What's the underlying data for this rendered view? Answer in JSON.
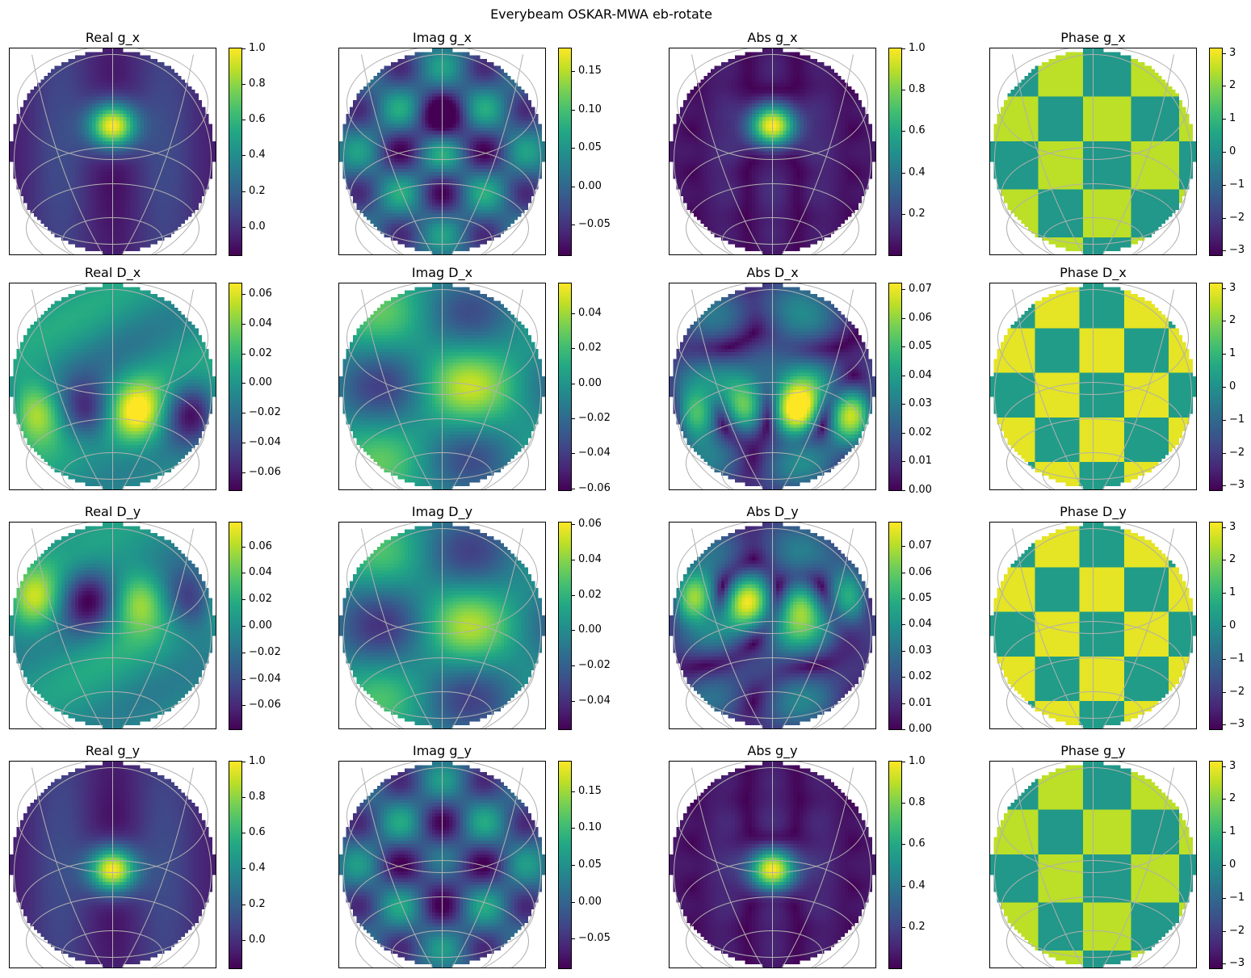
{
  "figure_title": "Everybeam OSKAR-MWA eb-rotate",
  "colormap": "viridis",
  "grid_color": "#b0b0b0",
  "chart_data": [
    {
      "type": "heatmap",
      "title": "Real g_x",
      "component": "g_x",
      "quantity": "real",
      "clim": [
        -0.16,
        1.0
      ],
      "ticks": [
        1.0,
        0.8,
        0.6,
        0.4,
        0.2,
        0.0
      ],
      "tick_labels": [
        "1.0",
        "0.8",
        "0.6",
        "0.4",
        "0.2",
        "0.0"
      ]
    },
    {
      "type": "heatmap",
      "title": "Imag g_x",
      "component": "g_x",
      "quantity": "imag",
      "clim": [
        -0.09,
        0.18
      ],
      "ticks": [
        0.15,
        0.1,
        0.05,
        0.0,
        -0.05
      ],
      "tick_labels": [
        "0.15",
        "0.10",
        "0.05",
        "0.00",
        "−0.05"
      ]
    },
    {
      "type": "heatmap",
      "title": "Abs g_x",
      "component": "g_x",
      "quantity": "abs",
      "clim": [
        0.0,
        1.0
      ],
      "ticks": [
        1.0,
        0.8,
        0.6,
        0.4,
        0.2
      ],
      "tick_labels": [
        "1.0",
        "0.8",
        "0.6",
        "0.4",
        "0.2"
      ]
    },
    {
      "type": "heatmap",
      "title": "Phase g_x",
      "component": "g_x",
      "quantity": "phase",
      "clim": [
        -3.14,
        3.14
      ],
      "ticks": [
        3,
        2,
        1,
        0,
        -1,
        -2,
        -3
      ],
      "tick_labels": [
        "3",
        "2",
        "1",
        "0",
        "−1",
        "−2",
        "−3"
      ]
    },
    {
      "type": "heatmap",
      "title": "Real D_x",
      "component": "D_x",
      "quantity": "real",
      "clim": [
        -0.072,
        0.067
      ],
      "ticks": [
        0.06,
        0.04,
        0.02,
        0.0,
        -0.02,
        -0.04,
        -0.06
      ],
      "tick_labels": [
        "0.06",
        "0.04",
        "0.02",
        "0.00",
        "−0.02",
        "−0.04",
        "−0.06"
      ]
    },
    {
      "type": "heatmap",
      "title": "Imag D_x",
      "component": "D_x",
      "quantity": "imag",
      "clim": [
        -0.061,
        0.057
      ],
      "ticks": [
        0.04,
        0.02,
        0.0,
        -0.02,
        -0.04,
        -0.06
      ],
      "tick_labels": [
        "0.04",
        "0.02",
        "0.00",
        "−0.02",
        "−0.04",
        "−0.06"
      ]
    },
    {
      "type": "heatmap",
      "title": "Abs D_x",
      "component": "D_x",
      "quantity": "abs",
      "clim": [
        0.0,
        0.072
      ],
      "ticks": [
        0.07,
        0.06,
        0.05,
        0.04,
        0.03,
        0.02,
        0.01,
        0.0
      ],
      "tick_labels": [
        "0.07",
        "0.06",
        "0.05",
        "0.04",
        "0.03",
        "0.02",
        "0.01",
        "0.00"
      ]
    },
    {
      "type": "heatmap",
      "title": "Phase D_x",
      "component": "D_x",
      "quantity": "phase",
      "clim": [
        -3.14,
        3.14
      ],
      "ticks": [
        3,
        2,
        1,
        0,
        -1,
        -2,
        -3
      ],
      "tick_labels": [
        "3",
        "2",
        "1",
        "0",
        "−1",
        "−2",
        "−3"
      ]
    },
    {
      "type": "heatmap",
      "title": "Real D_y",
      "component": "D_y",
      "quantity": "real",
      "clim": [
        -0.078,
        0.078
      ],
      "ticks": [
        0.06,
        0.04,
        0.02,
        0.0,
        -0.02,
        -0.04,
        -0.06
      ],
      "tick_labels": [
        "0.06",
        "0.04",
        "0.02",
        "0.00",
        "−0.02",
        "−0.04",
        "−0.06"
      ]
    },
    {
      "type": "heatmap",
      "title": "Imag D_y",
      "component": "D_y",
      "quantity": "imag",
      "clim": [
        -0.056,
        0.061
      ],
      "ticks": [
        0.06,
        0.04,
        0.02,
        0.0,
        -0.02,
        -0.04
      ],
      "tick_labels": [
        "0.06",
        "0.04",
        "0.02",
        "0.00",
        "−0.02",
        "−0.04"
      ]
    },
    {
      "type": "heatmap",
      "title": "Abs D_y",
      "component": "D_y",
      "quantity": "abs",
      "clim": [
        0.0,
        0.079
      ],
      "ticks": [
        0.07,
        0.06,
        0.05,
        0.04,
        0.03,
        0.02,
        0.01,
        0.0
      ],
      "tick_labels": [
        "0.07",
        "0.06",
        "0.05",
        "0.04",
        "0.03",
        "0.02",
        "0.01",
        "0.00"
      ]
    },
    {
      "type": "heatmap",
      "title": "Phase D_y",
      "component": "D_y",
      "quantity": "phase",
      "clim": [
        -3.14,
        3.14
      ],
      "ticks": [
        3,
        2,
        1,
        0,
        -1,
        -2,
        -3
      ],
      "tick_labels": [
        "3",
        "2",
        "1",
        "0",
        "−1",
        "−2",
        "−3"
      ]
    },
    {
      "type": "heatmap",
      "title": "Real g_y",
      "component": "g_y",
      "quantity": "real",
      "clim": [
        -0.16,
        1.0
      ],
      "ticks": [
        1.0,
        0.8,
        0.6,
        0.4,
        0.2,
        0.0
      ],
      "tick_labels": [
        "1.0",
        "0.8",
        "0.6",
        "0.4",
        "0.2",
        "0.0"
      ]
    },
    {
      "type": "heatmap",
      "title": "Imag g_y",
      "component": "g_y",
      "quantity": "imag",
      "clim": [
        -0.09,
        0.19
      ],
      "ticks": [
        0.15,
        0.1,
        0.05,
        0.0,
        -0.05
      ],
      "tick_labels": [
        "0.15",
        "0.10",
        "0.05",
        "0.00",
        "−0.05"
      ]
    },
    {
      "type": "heatmap",
      "title": "Abs g_y",
      "component": "g_y",
      "quantity": "abs",
      "clim": [
        0.0,
        1.0
      ],
      "ticks": [
        1.0,
        0.8,
        0.6,
        0.4,
        0.2
      ],
      "tick_labels": [
        "1.0",
        "0.8",
        "0.6",
        "0.4",
        "0.2"
      ]
    },
    {
      "type": "heatmap",
      "title": "Phase g_y",
      "component": "g_y",
      "quantity": "phase",
      "clim": [
        -3.14,
        3.14
      ],
      "ticks": [
        3,
        2,
        1,
        0,
        -1,
        -2,
        -3
      ],
      "tick_labels": [
        "3",
        "2",
        "1",
        "0",
        "−1",
        "−2",
        "−3"
      ]
    }
  ]
}
